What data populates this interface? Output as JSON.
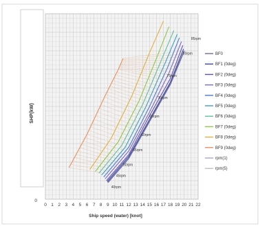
{
  "colors": {
    "background": "#ffffff",
    "frame": "#d8d8d8",
    "plot_bg": "#f3f3f3",
    "grid": "#c4c4c4"
  },
  "chart_data": {
    "type": "line",
    "xlabel": "Ship speed (water) [knot]",
    "ylabel": "SHP(kW)",
    "xlim": [
      0,
      22
    ],
    "ylim": [
      0,
      100
    ],
    "x_ticks": [
      "0",
      "1",
      "2",
      "3",
      "4",
      "5",
      "6",
      "7",
      "8",
      "9",
      "10",
      "11",
      "12",
      "13",
      "14",
      "15",
      "16",
      "17",
      "18",
      "19",
      "20",
      "21",
      "22"
    ],
    "y_ticks": [
      "0"
    ],
    "grid": true,
    "legend_position": "right",
    "series": [
      {
        "name": "BF0",
        "color": "#6a6aa0",
        "points": [
          [
            9,
            9
          ],
          [
            12,
            22
          ],
          [
            15,
            42
          ],
          [
            18,
            62
          ],
          [
            20,
            80
          ]
        ]
      },
      {
        "name": "BF1 (0deg)",
        "color": "#3a4a9e",
        "points": [
          [
            8.9,
            9.5
          ],
          [
            12,
            23
          ],
          [
            15,
            43
          ],
          [
            18,
            63
          ],
          [
            19.9,
            81
          ]
        ]
      },
      {
        "name": "BF2 (0deg)",
        "color": "#5a52b8",
        "points": [
          [
            8.8,
            10
          ],
          [
            12,
            24
          ],
          [
            15,
            45
          ],
          [
            18,
            65
          ],
          [
            19.8,
            83
          ]
        ]
      },
      {
        "name": "BF3 (0deg)",
        "color": "#7b68c8",
        "points": [
          [
            8.6,
            11
          ],
          [
            12,
            26
          ],
          [
            15,
            47
          ],
          [
            17.8,
            68
          ],
          [
            19.6,
            85
          ]
        ]
      },
      {
        "name": "BF4 (0deg)",
        "color": "#4a7ad8",
        "points": [
          [
            8.4,
            12
          ],
          [
            12,
            28
          ],
          [
            15,
            50
          ],
          [
            17.6,
            71
          ],
          [
            19.3,
            87
          ]
        ]
      },
      {
        "name": "BF5 (0deg)",
        "color": "#3aa0c8",
        "points": [
          [
            8.1,
            13
          ],
          [
            11.5,
            28
          ],
          [
            14.5,
            50
          ],
          [
            17.2,
            73
          ],
          [
            19,
            89
          ]
        ]
      },
      {
        "name": "BF6 (0deg)",
        "color": "#5cc0a0",
        "points": [
          [
            7.7,
            14
          ],
          [
            11,
            29
          ],
          [
            14,
            51
          ],
          [
            16.6,
            74
          ],
          [
            18.5,
            91
          ]
        ]
      },
      {
        "name": "BF7 (0deg)",
        "color": "#8cc84a",
        "points": [
          [
            7.2,
            15
          ],
          [
            10.5,
            31
          ],
          [
            13.5,
            53
          ],
          [
            16,
            76
          ],
          [
            17.8,
            93
          ]
        ]
      },
      {
        "name": "BF8 (0deg)",
        "color": "#e0b040",
        "points": [
          [
            6.4,
            16
          ],
          [
            9.5,
            33
          ],
          [
            12.5,
            56
          ],
          [
            15,
            79
          ],
          [
            17,
            96
          ]
        ]
      },
      {
        "name": "BF9 (0deg)",
        "color": "#e89060",
        "points": [
          [
            3.4,
            17
          ],
          [
            6,
            35
          ],
          [
            8.5,
            55
          ],
          [
            10.5,
            70
          ],
          [
            11.2,
            76
          ]
        ]
      },
      {
        "name": "rpm(1)",
        "color": "#b0a0d8",
        "points": []
      },
      {
        "name": "rpm(5)",
        "color": "#c0c0c0",
        "points": []
      }
    ],
    "rpm_labels": [
      {
        "text": "40rpm",
        "x": 9.5,
        "y": 6
      },
      {
        "text": "45rpm",
        "x": 10.2,
        "y": 12
      },
      {
        "text": "50rpm",
        "x": 11.2,
        "y": 18
      },
      {
        "text": "55rpm",
        "x": 12.6,
        "y": 26
      },
      {
        "text": "60rpm",
        "x": 13.8,
        "y": 34
      },
      {
        "text": "65rpm",
        "x": 15,
        "y": 44
      },
      {
        "text": "70rpm",
        "x": 16.2,
        "y": 54
      },
      {
        "text": "75rpm",
        "x": 17.5,
        "y": 66
      },
      {
        "text": "80rpm",
        "x": 19.8,
        "y": 78
      },
      {
        "text": "85rpm",
        "x": 21,
        "y": 86
      }
    ],
    "rpm_values": [
      40,
      45,
      50,
      55,
      60,
      65,
      70,
      75,
      80,
      85
    ]
  }
}
